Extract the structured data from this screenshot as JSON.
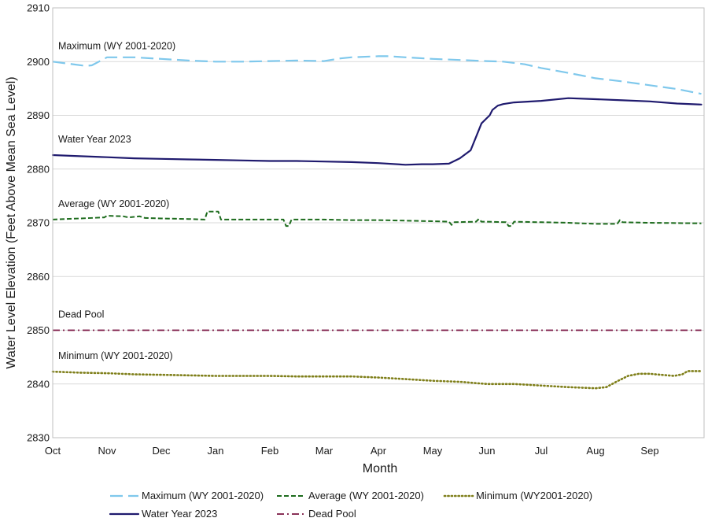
{
  "chart_data": {
    "type": "line",
    "xlabel": "Month",
    "ylabel": "Water Level Elevation (Feet Above Mean Sea Level)",
    "ylim": [
      2830,
      2910
    ],
    "xlim": [
      0,
      12
    ],
    "yticks": [
      2830,
      2840,
      2850,
      2860,
      2870,
      2880,
      2890,
      2900,
      2910
    ],
    "categories": [
      "Oct",
      "Nov",
      "Dec",
      "Jan",
      "Feb",
      "Mar",
      "Apr",
      "May",
      "Jun",
      "Jul",
      "Aug",
      "Sep"
    ],
    "grid": "horizontal",
    "legend_position": "bottom",
    "series": [
      {
        "key": "maximum",
        "name": "Maximum (WY 2001-2020)",
        "annotation": "Maximum (WY 2001-2020)",
        "color": "#7FC8EC",
        "style": "long-dash",
        "x": [
          0,
          0.3,
          0.6,
          0.72,
          0.85,
          1.0,
          1.5,
          2.0,
          2.5,
          3.0,
          3.5,
          4.0,
          4.5,
          5.0,
          5.3,
          5.5,
          6.0,
          6.2,
          6.5,
          7.0,
          7.5,
          8.0,
          8.3,
          8.7,
          9.0,
          9.5,
          10.0,
          10.5,
          11.0,
          11.5,
          11.95
        ],
        "values": [
          2900.0,
          2899.6,
          2899.2,
          2899.3,
          2900.0,
          2900.8,
          2900.8,
          2900.5,
          2900.2,
          2900.0,
          2900.0,
          2900.1,
          2900.2,
          2900.1,
          2900.6,
          2900.8,
          2901.0,
          2901.0,
          2900.8,
          2900.5,
          2900.3,
          2900.1,
          2900.0,
          2899.5,
          2898.8,
          2897.9,
          2896.9,
          2896.3,
          2895.6,
          2894.9,
          2894.0
        ]
      },
      {
        "key": "wy2023",
        "name": "Water Year 2023",
        "annotation": "Water Year 2023",
        "color": "#1F1A6E",
        "style": "solid",
        "x": [
          0,
          0.5,
          1.0,
          1.5,
          2.0,
          2.5,
          3.0,
          3.5,
          4.0,
          4.5,
          5.0,
          5.5,
          6.0,
          6.5,
          6.8,
          7.0,
          7.3,
          7.5,
          7.7,
          7.8,
          7.9,
          8.0,
          8.05,
          8.1,
          8.2,
          8.3,
          8.5,
          9.0,
          9.5,
          10.0,
          10.5,
          11.0,
          11.5,
          11.95
        ],
        "values": [
          2882.6,
          2882.4,
          2882.2,
          2882.0,
          2881.9,
          2881.8,
          2881.7,
          2881.6,
          2881.5,
          2881.5,
          2881.4,
          2881.3,
          2881.1,
          2880.8,
          2880.9,
          2880.9,
          2881.0,
          2882.0,
          2883.5,
          2886.0,
          2888.5,
          2889.5,
          2890.0,
          2891.0,
          2891.8,
          2892.1,
          2892.4,
          2892.7,
          2893.2,
          2893.0,
          2892.8,
          2892.6,
          2892.2,
          2892.0
        ]
      },
      {
        "key": "average",
        "name": "Average (WY 2001-2020)",
        "annotation": "Average (WY 2001-2020)",
        "color": "#1C6B1C",
        "style": "short-dash",
        "x": [
          0,
          0.5,
          0.95,
          1.0,
          1.3,
          1.4,
          1.6,
          1.7,
          2.0,
          2.5,
          2.8,
          2.85,
          3.05,
          3.1,
          3.5,
          4.0,
          4.25,
          4.3,
          4.35,
          4.4,
          5.0,
          5.5,
          6.0,
          6.5,
          7.0,
          7.3,
          7.35,
          7.4,
          7.8,
          7.85,
          7.9,
          8.0,
          8.35,
          8.4,
          8.45,
          8.5,
          9.0,
          9.5,
          10.0,
          10.4,
          10.45,
          10.5,
          11.0,
          11.95
        ],
        "values": [
          2870.6,
          2870.8,
          2871.0,
          2871.3,
          2871.2,
          2871.0,
          2871.2,
          2870.9,
          2870.8,
          2870.7,
          2870.6,
          2872.1,
          2872.1,
          2870.6,
          2870.6,
          2870.6,
          2870.6,
          2869.4,
          2869.4,
          2870.6,
          2870.6,
          2870.5,
          2870.5,
          2870.4,
          2870.3,
          2870.2,
          2869.6,
          2870.1,
          2870.2,
          2870.7,
          2870.2,
          2870.2,
          2870.1,
          2869.4,
          2869.4,
          2870.2,
          2870.1,
          2870.0,
          2869.8,
          2869.8,
          2870.5,
          2870.1,
          2870.0,
          2869.9
        ]
      },
      {
        "key": "deadpool",
        "name": "Dead Pool",
        "annotation": "Dead Pool",
        "color": "#7A1541",
        "style": "dash-dot",
        "x": [
          0,
          11.95
        ],
        "values": [
          2850,
          2850
        ]
      },
      {
        "key": "minimum",
        "name": "Minimum (WY2001-2020)",
        "annotation": "Minimum (WY 2001-2020)",
        "color": "#7F7F1A",
        "style": "dotted",
        "x": [
          0,
          0.5,
          1.0,
          1.5,
          2.0,
          2.5,
          3.0,
          3.5,
          4.0,
          4.5,
          5.0,
          5.5,
          6.0,
          6.5,
          7.0,
          7.5,
          8.0,
          8.5,
          9.0,
          9.5,
          10.0,
          10.2,
          10.4,
          10.6,
          10.8,
          11.0,
          11.2,
          11.45,
          11.6,
          11.7,
          11.95
        ],
        "values": [
          2842.3,
          2842.1,
          2842.0,
          2841.8,
          2841.7,
          2841.6,
          2841.5,
          2841.5,
          2841.5,
          2841.4,
          2841.4,
          2841.4,
          2841.2,
          2840.9,
          2840.6,
          2840.4,
          2840.0,
          2840.0,
          2839.7,
          2839.4,
          2839.2,
          2839.4,
          2840.5,
          2841.5,
          2841.9,
          2841.9,
          2841.7,
          2841.5,
          2841.8,
          2842.4,
          2842.4
        ]
      }
    ],
    "legend": [
      {
        "series": "maximum",
        "label": "Maximum (WY 2001-2020)"
      },
      {
        "series": "average",
        "label": "Average (WY 2001-2020)"
      },
      {
        "series": "minimum",
        "label": "Minimum (WY2001-2020)"
      },
      {
        "series": "wy2023",
        "label": "Water Year 2023"
      },
      {
        "series": "deadpool",
        "label": "Dead Pool"
      }
    ]
  }
}
